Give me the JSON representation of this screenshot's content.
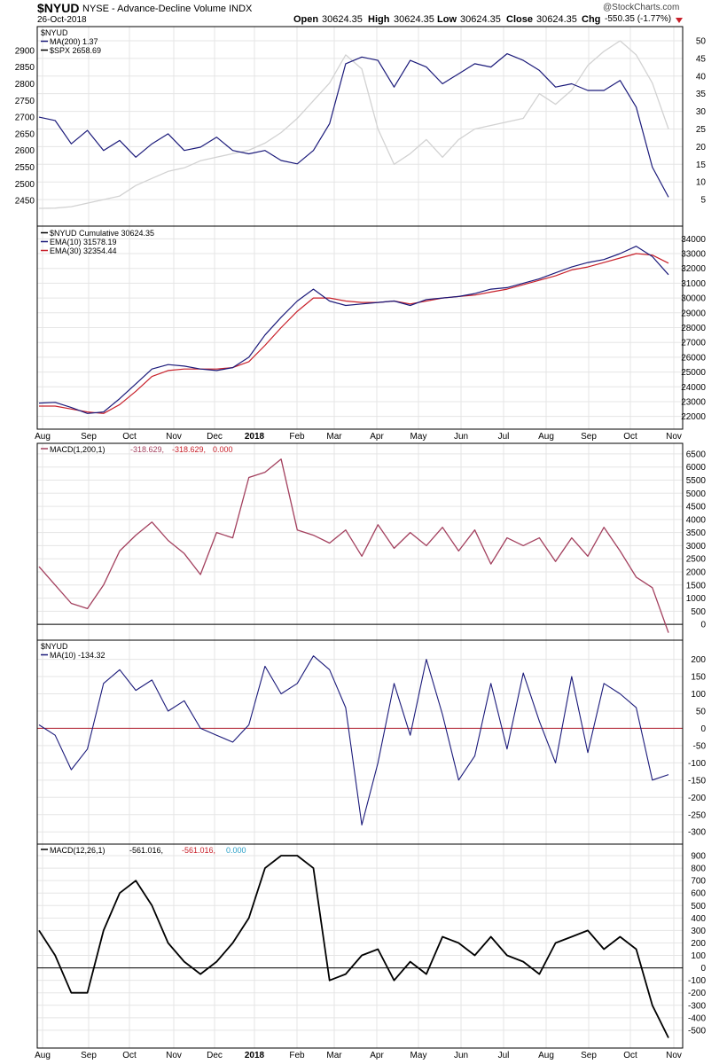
{
  "header": {
    "symbol": "$NYUD",
    "name": "NYSE - Advance-Decline Volume INDX",
    "date": "26-Oct-2018",
    "open_label": "Open",
    "open": "30624.35",
    "high_label": "High",
    "high": "30624.35",
    "low_label": "Low",
    "low": "30624.35",
    "close_label": "Close",
    "close": "30624.35",
    "chg_label": "Chg",
    "chg": "-550.35 (-1.77%)",
    "watermark": "@StockCharts.com"
  },
  "colors": {
    "navy": "#1b1a7a",
    "spx_gray": "#d2d2d2",
    "ema30_red": "#c8202a",
    "macd_rose": "#a3405e",
    "grid": "#e5e5e5",
    "zero_red": "#b01a2a"
  },
  "chart_data": [
    {
      "type": "line",
      "panel": "price",
      "legend": [
        "$NYUD",
        "MA(200) 1.37",
        "$SPX 2658.69"
      ],
      "series": [
        {
          "name": "$NYUD",
          "color": "#1b1a7a",
          "axis": "left",
          "values": [
            2700,
            2690,
            2620,
            2660,
            2600,
            2630,
            2580,
            2620,
            2650,
            2600,
            2610,
            2640,
            2600,
            2590,
            2600,
            2570,
            2560,
            2600,
            2680,
            2860,
            2880,
            2870,
            2790,
            2870,
            2850,
            2800,
            2830,
            2860,
            2850,
            2890,
            2870,
            2840,
            2790,
            2800,
            2780,
            2780,
            2810,
            2730,
            2550,
            2460
          ]
        },
        {
          "name": "$SPX",
          "color": "#d2d2d2",
          "axis": "right",
          "values": [
            2.5,
            2.6,
            3,
            4,
            5,
            6,
            9,
            11,
            13,
            14,
            16,
            17,
            18,
            19,
            21,
            24,
            28,
            33,
            38,
            46,
            42,
            25,
            15,
            18,
            22,
            17,
            22,
            25,
            26,
            27,
            28,
            35,
            32,
            36,
            43,
            47,
            50,
            46,
            38,
            25
          ]
        }
      ],
      "ylim_left": [
        2400,
        2950
      ],
      "ylim_right": [
        0,
        52
      ],
      "y_ticks_left": [
        "2900",
        "2850",
        "2800",
        "2750",
        "2700",
        "2650",
        "2600",
        "2550",
        "2500",
        "2450"
      ],
      "y_ticks_right": [
        "50",
        "45",
        "40",
        "35",
        "30",
        "25",
        "20",
        "15",
        "10",
        "5"
      ]
    },
    {
      "type": "line",
      "panel": "cumulative",
      "legend": [
        "$NYUD Cumulative 30624.35",
        "EMA(10) 31578.19",
        "EMA(30) 32354.44"
      ],
      "series": [
        {
          "name": "EMA(10)",
          "color": "#1b1a7a",
          "values": [
            22900,
            22950,
            22600,
            22200,
            22300,
            23200,
            24200,
            25200,
            25500,
            25400,
            25200,
            25100,
            25300,
            26000,
            27500,
            28700,
            29800,
            30600,
            29800,
            29500,
            29600,
            29700,
            29800,
            29500,
            29900,
            30000,
            30100,
            30300,
            30600,
            30700,
            31000,
            31300,
            31700,
            32100,
            32400,
            32600,
            33000,
            33500,
            32800,
            31578
          ]
        },
        {
          "name": "EMA(30)",
          "color": "#c8202a",
          "values": [
            22700,
            22700,
            22500,
            22300,
            22200,
            22800,
            23700,
            24700,
            25100,
            25200,
            25200,
            25200,
            25300,
            25700,
            26800,
            28000,
            29100,
            30000,
            30000,
            29800,
            29700,
            29700,
            29800,
            29600,
            29800,
            30000,
            30100,
            30200,
            30400,
            30600,
            30900,
            31200,
            31500,
            31900,
            32100,
            32400,
            32700,
            33000,
            32900,
            32354
          ]
        }
      ],
      "ylim": [
        21500,
        34500
      ],
      "y_ticks": [
        "34000",
        "33000",
        "32000",
        "31000",
        "30000",
        "29000",
        "28000",
        "27000",
        "26000",
        "25000",
        "24000",
        "23000",
        "22000"
      ],
      "x_ticks": [
        "Aug",
        "Sep",
        "Oct",
        "Nov",
        "Dec",
        "2018",
        "Feb",
        "Mar",
        "Apr",
        "May",
        "Jun",
        "Jul",
        "Aug",
        "Sep",
        "Oct",
        "Nov"
      ]
    },
    {
      "type": "line",
      "panel": "macd_long",
      "legend": "MACD(1,200,1)",
      "legend_values": [
        "-318.629,",
        "-318.629,",
        "0.000"
      ],
      "series": [
        {
          "name": "MACD(1,200,1)",
          "color": "#a3405e",
          "values": [
            2200,
            1500,
            800,
            600,
            1500,
            2800,
            3400,
            3900,
            3200,
            2700,
            1900,
            3500,
            3300,
            5600,
            5800,
            6300,
            3600,
            3400,
            3100,
            3600,
            2600,
            3800,
            2900,
            3500,
            3000,
            3700,
            2800,
            3600,
            2300,
            3300,
            3000,
            3300,
            2400,
            3300,
            2600,
            3700,
            2800,
            1800,
            1400,
            -319
          ]
        }
      ],
      "ylim": [
        -400,
        6700
      ],
      "y_ticks": [
        "6500",
        "6000",
        "5500",
        "5000",
        "4500",
        "4000",
        "3500",
        "3000",
        "2500",
        "2000",
        "1500",
        "1000",
        "500",
        "0"
      ]
    },
    {
      "type": "line",
      "panel": "daily",
      "legend": [
        "$NYUD",
        "MA(10) -134.32"
      ],
      "series": [
        {
          "name": "MA(10)",
          "color": "#1b1a7a",
          "values": [
            10,
            -20,
            -120,
            -60,
            130,
            170,
            110,
            140,
            50,
            80,
            0,
            -20,
            -40,
            10,
            180,
            100,
            130,
            210,
            170,
            60,
            -280,
            -100,
            130,
            -20,
            200,
            40,
            -150,
            -80,
            130,
            -60,
            160,
            20,
            -100,
            150,
            -70,
            130,
            100,
            60,
            -150,
            -134
          ]
        }
      ],
      "ylim": [
        -320,
        240
      ],
      "y_ticks": [
        "200",
        "150",
        "100",
        "50",
        "0",
        "-50",
        "-100",
        "-150",
        "-200",
        "-250",
        "-300"
      ]
    },
    {
      "type": "line",
      "panel": "macd_short",
      "legend": "MACD(12,26,1)",
      "legend_values": [
        "-561.016,",
        "-561.016,",
        "0.000"
      ],
      "series": [
        {
          "name": "MACD(12,26,1)",
          "color": "#000000",
          "values": [
            300,
            100,
            -200,
            -200,
            300,
            600,
            700,
            500,
            200,
            50,
            -50,
            50,
            200,
            400,
            800,
            900,
            900,
            800,
            -100,
            -50,
            100,
            150,
            -100,
            50,
            -50,
            250,
            200,
            100,
            250,
            100,
            50,
            -50,
            200,
            250,
            300,
            150,
            250,
            150,
            -300,
            -561
          ]
        }
      ],
      "ylim": [
        -600,
        950
      ],
      "y_ticks": [
        "900",
        "800",
        "700",
        "600",
        "500",
        "400",
        "300",
        "200",
        "100",
        "0",
        "-100",
        "-200",
        "-300",
        "-400",
        "-500"
      ],
      "x_ticks": [
        "Aug",
        "Sep",
        "Oct",
        "Nov",
        "Dec",
        "2018",
        "Feb",
        "Mar",
        "Apr",
        "May",
        "Jun",
        "Jul",
        "Aug",
        "Sep",
        "Oct",
        "Nov"
      ]
    }
  ]
}
